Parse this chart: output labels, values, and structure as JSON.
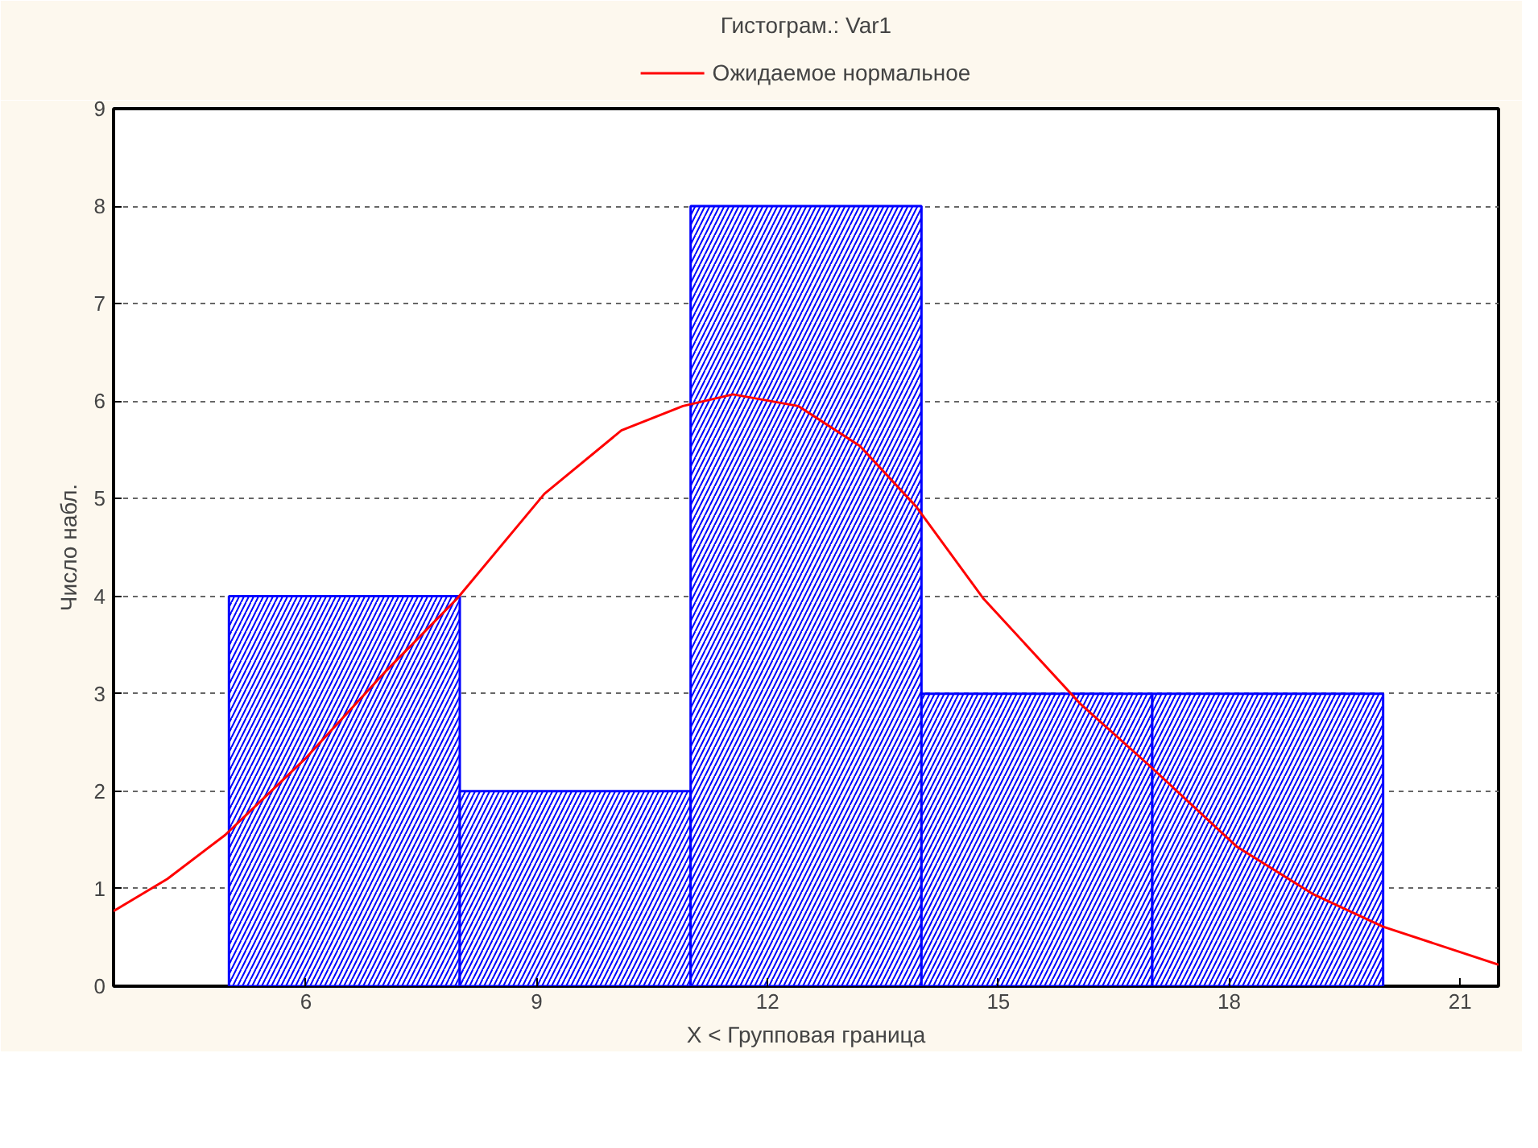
{
  "chart_data": {
    "type": "histogram",
    "title": "Гистограм.: Var1",
    "xlabel": "X < Групповая граница",
    "ylabel": "Число набл.",
    "bins": [
      5,
      8,
      11,
      14,
      17,
      20
    ],
    "values": [
      4,
      2,
      8,
      3,
      3
    ],
    "color": "#0000ff",
    "series": [
      {
        "type": "line",
        "name": "Ожидаемое нормальное",
        "color": "#ff0000",
        "x": [
          3.5,
          4.2,
          4.95,
          6.0,
          7.05,
          7.97,
          9.1,
          10.1,
          10.9,
          11.55,
          12.4,
          13.2,
          13.93,
          14.8,
          16.06,
          16.98,
          18.1,
          19.1,
          20.0,
          21.5
        ],
        "values": [
          0.77,
          1.1,
          1.55,
          2.34,
          3.24,
          3.98,
          5.05,
          5.7,
          5.95,
          6.07,
          5.95,
          5.54,
          4.92,
          3.98,
          2.9,
          2.25,
          1.43,
          0.94,
          0.61,
          0.22
        ]
      }
    ],
    "xlim": [
      3.5,
      21.5
    ],
    "xticks": [
      6,
      9,
      12,
      15,
      18,
      21
    ],
    "ylim": [
      0,
      9
    ],
    "yticks": [
      0,
      1,
      2,
      3,
      4,
      5,
      6,
      7,
      8,
      9
    ],
    "grid": "y",
    "legend": "top"
  }
}
